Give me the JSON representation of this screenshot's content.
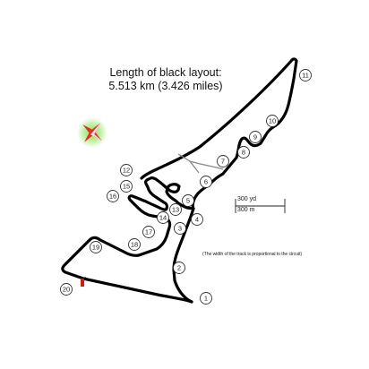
{
  "title": {
    "line1": "Length of black layout:",
    "line2": "5.513 km (3.426 miles)"
  },
  "footnote": "(The width of the track is proportional to the circuit)",
  "scale": {
    "yards_label": "300 yd",
    "meters_label": "300 m"
  },
  "compass": {
    "icon": "compass-rose-icon",
    "colors": {
      "glow": "#7fe04a",
      "point": "#e0302a",
      "light": "#ffffff"
    }
  },
  "track": {
    "color": "#000000",
    "start_finish_color": "#d11a1a"
  },
  "turns": [
    "1",
    "2",
    "3",
    "4",
    "5",
    "6",
    "7",
    "8",
    "9",
    "10",
    "11",
    "12",
    "13",
    "14",
    "15",
    "16",
    "17",
    "18",
    "19",
    "20"
  ]
}
